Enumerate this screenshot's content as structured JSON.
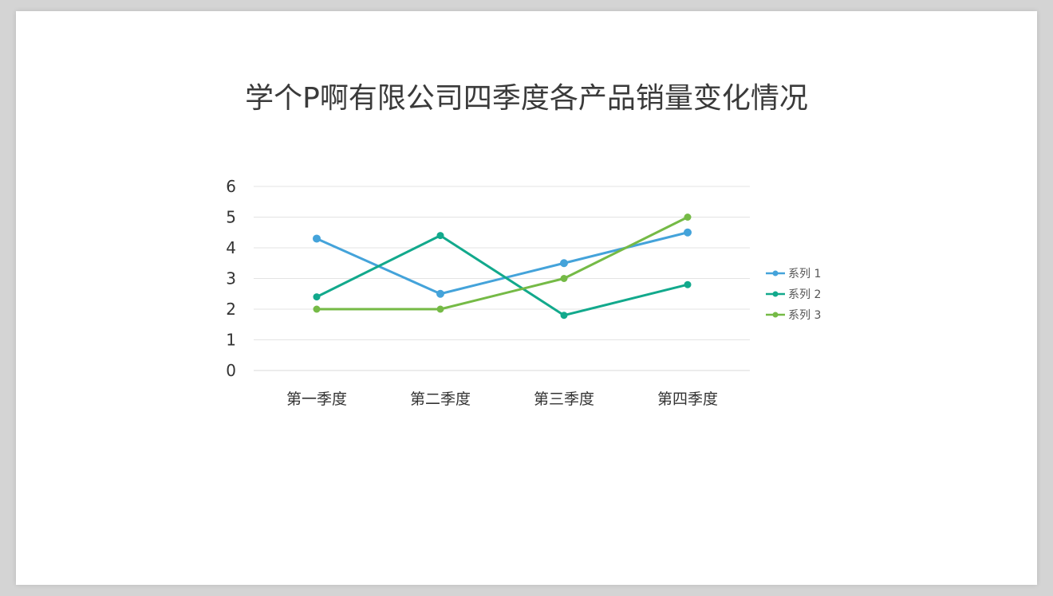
{
  "chart_data": {
    "type": "line",
    "title": "学个P啊有限公司四季度各产品销量变化情况",
    "categories": [
      "第一季度",
      "第二季度",
      "第三季度",
      "第四季度"
    ],
    "series": [
      {
        "name": "系列 1",
        "values": [
          4.3,
          2.5,
          3.5,
          4.5
        ],
        "color": "#44a3da"
      },
      {
        "name": "系列 2",
        "values": [
          2.4,
          4.4,
          1.8,
          2.8
        ],
        "color": "#12a98c"
      },
      {
        "name": "系列 3",
        "values": [
          2,
          2,
          3,
          5
        ],
        "color": "#75ba46"
      }
    ],
    "yticks": [
      "0",
      "1",
      "2",
      "3",
      "4",
      "5",
      "6"
    ],
    "ylim": [
      0,
      6
    ],
    "grid": true,
    "legend_position": "right"
  }
}
